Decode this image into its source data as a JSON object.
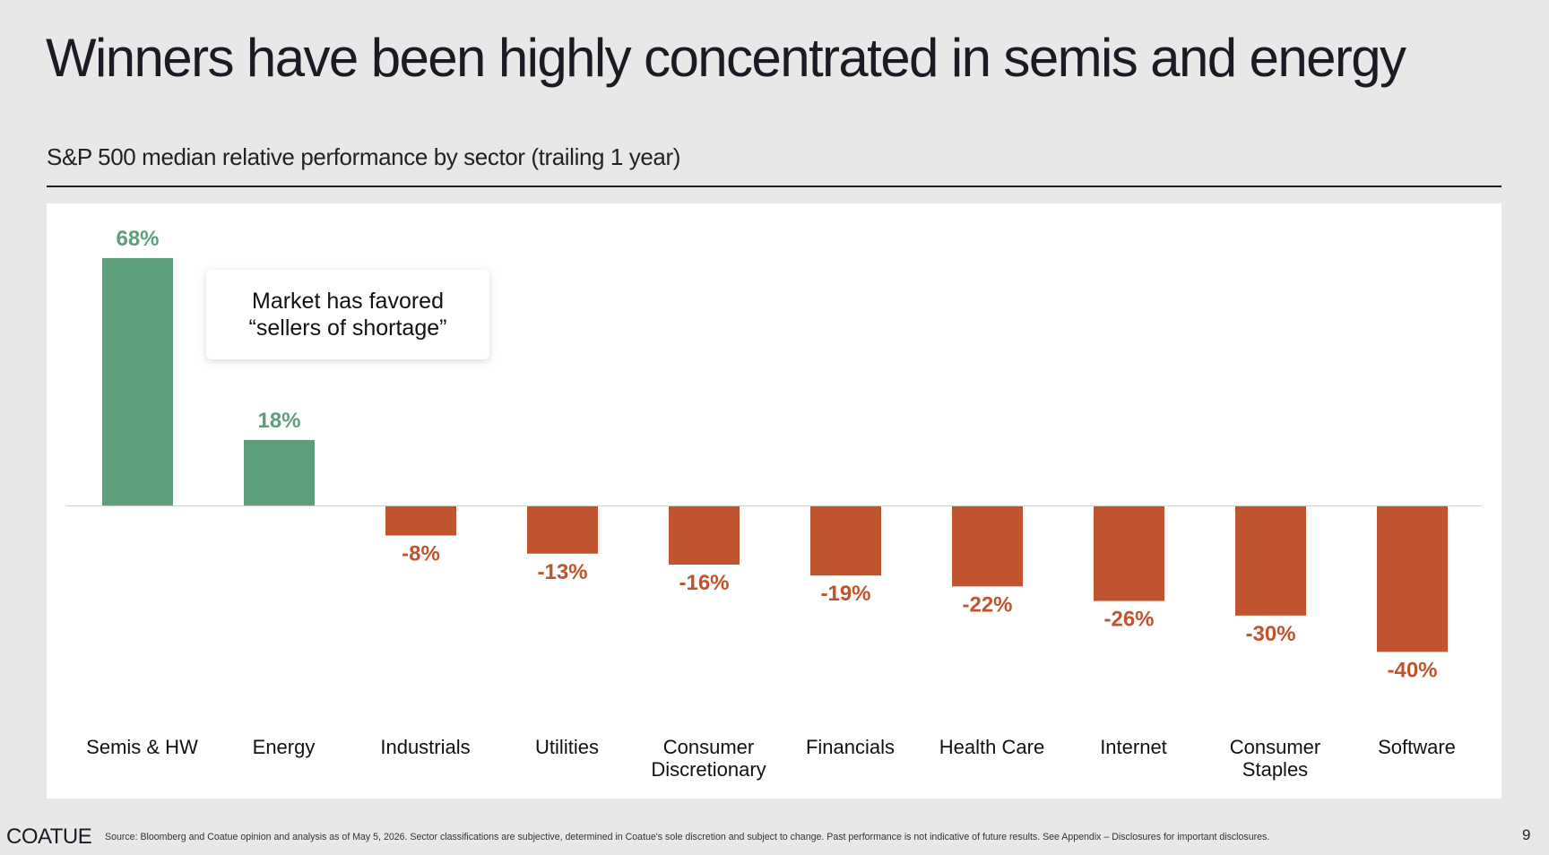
{
  "slide": {
    "title": "Winners have been highly concentrated in semis and energy",
    "subtitle": "S&P 500 median relative performance by sector (trailing 1 year)",
    "callout": "Market has favored\n“sellers of shortage”",
    "logo": "COATUE",
    "source": "Source: Bloomberg and Coatue opinion and analysis as of May 5, 2026. Sector classifications are subjective, determined in Coatue's sole discretion and subject to change. Past performance is not indicative of future results. See Appendix – Disclosures for important disclosures.",
    "page_number": "9"
  },
  "chart_data": {
    "type": "bar",
    "title": "S&P 500 median relative performance by sector (trailing 1 year)",
    "categories": [
      "Semis & HW",
      "Energy",
      "Industrials",
      "Utilities",
      "Consumer Discretionary",
      "Financials",
      "Health Care",
      "Internet",
      "Consumer Staples",
      "Software"
    ],
    "category_lines": [
      [
        "Semis & HW"
      ],
      [
        "Energy"
      ],
      [
        "Industrials"
      ],
      [
        "Utilities"
      ],
      [
        "Consumer",
        "Discretionary"
      ],
      [
        "Financials"
      ],
      [
        "Health Care"
      ],
      [
        "Internet"
      ],
      [
        "Consumer",
        "Staples"
      ],
      [
        "Software"
      ]
    ],
    "values": [
      68,
      18,
      -8,
      -13,
      -16,
      -19,
      -22,
      -26,
      -30,
      -40
    ],
    "value_labels": [
      "68%",
      "18%",
      "-8%",
      "-13%",
      "-16%",
      "-19%",
      "-22%",
      "-26%",
      "-30%",
      "-40%"
    ],
    "unit": "%",
    "colors": {
      "positive": "#5f9e7b",
      "negative": "#c0542f",
      "baseline": "#d0d0d0"
    },
    "grid": false,
    "legend": "none"
  }
}
